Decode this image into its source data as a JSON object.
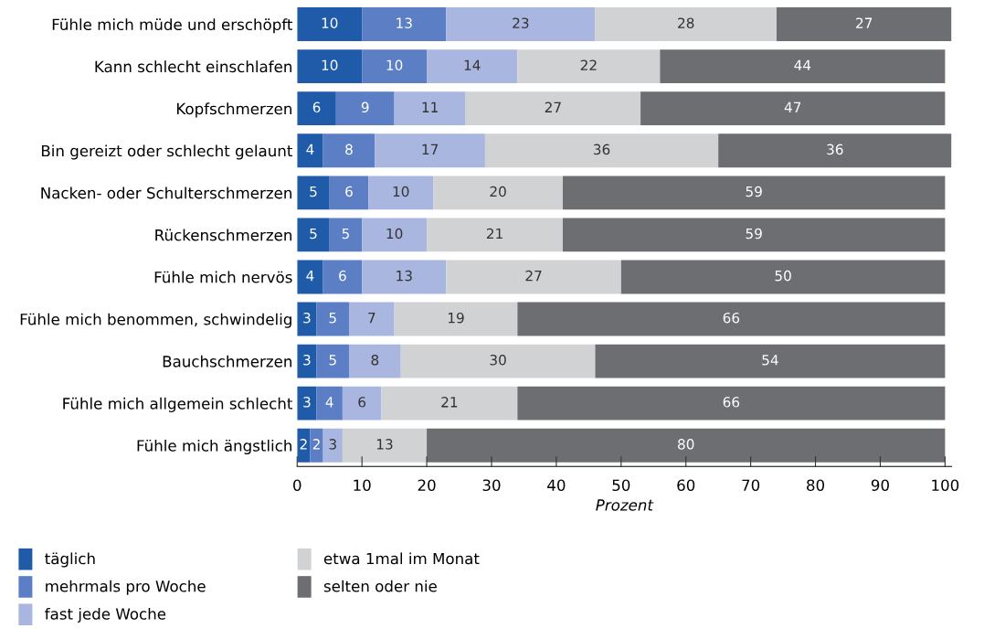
{
  "chart_data": {
    "type": "bar",
    "orientation": "horizontal",
    "stacked": true,
    "data_labels": true,
    "grid": false,
    "legend": "bottom",
    "xlabel": "Prozent",
    "categories": [
      "Fühle mich müde und erschöpft",
      "Kann schlecht einschlafen",
      "Kopfschmerzen",
      "Bin gereizt oder schlecht gelaunt",
      "Nacken- oder Schulterschmerzen",
      "Rückenschmerzen",
      "Fühle mich nervös",
      "Fühle mich benommen, schwindelig",
      "Bauchschmerzen",
      "Fühle mich allgemein schlecht",
      "Fühle mich ängstlich"
    ],
    "xlim": [
      0,
      101
    ],
    "xticks": [
      0,
      10,
      20,
      30,
      40,
      50,
      60,
      70,
      80,
      90,
      100
    ],
    "series": [
      {
        "name": "täglich",
        "color": "#1f5ba8",
        "values": [
          10,
          10,
          6,
          4,
          5,
          5,
          4,
          3,
          3,
          3,
          2
        ]
      },
      {
        "name": "mehrmals pro Woche",
        "color": "#5b7ec4",
        "values": [
          13,
          10,
          9,
          8,
          6,
          5,
          6,
          5,
          5,
          4,
          2
        ]
      },
      {
        "name": "fast jede Woche",
        "color": "#a9b6df",
        "values": [
          23,
          14,
          11,
          17,
          10,
          10,
          13,
          7,
          8,
          6,
          3
        ]
      },
      {
        "name": "etwa 1mal im Monat",
        "color": "#d1d2d4",
        "values": [
          28,
          22,
          27,
          36,
          20,
          21,
          27,
          19,
          30,
          21,
          13
        ]
      },
      {
        "name": "selten oder nie",
        "color": "#6d6e72",
        "values": [
          27,
          44,
          47,
          36,
          59,
          59,
          50,
          66,
          54,
          66,
          80
        ]
      }
    ]
  }
}
